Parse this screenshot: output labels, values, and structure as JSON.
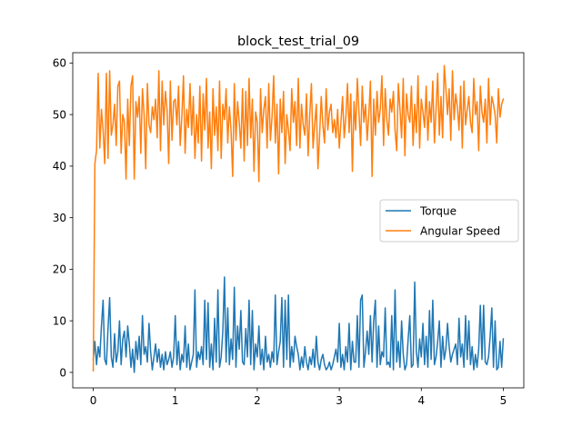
{
  "chart_data": {
    "type": "line",
    "title": "block_test_trial_09",
    "xlabel": "",
    "ylabel": "",
    "xlim": [
      -0.25,
      5.25
    ],
    "ylim": [
      -3.0,
      62.0
    ],
    "xticks": [
      0,
      1,
      2,
      3,
      4,
      5
    ],
    "yticks": [
      0,
      10,
      20,
      30,
      40,
      50,
      60
    ],
    "grid": false,
    "legend_position": "center-right",
    "series": [
      {
        "name": "Torque",
        "color": "#1f77b4",
        "x": [
          0.0,
          0.02,
          0.04,
          0.06,
          0.08,
          0.1,
          0.12,
          0.14,
          0.16,
          0.18,
          0.2,
          0.22,
          0.24,
          0.26,
          0.28,
          0.3,
          0.32,
          0.34,
          0.36,
          0.38,
          0.4,
          0.42,
          0.44,
          0.46,
          0.48,
          0.5,
          0.52,
          0.54,
          0.56,
          0.58,
          0.6,
          0.62,
          0.64,
          0.66,
          0.68,
          0.7,
          0.72,
          0.74,
          0.76,
          0.78,
          0.8,
          0.82,
          0.84,
          0.86,
          0.88,
          0.9,
          0.92,
          0.94,
          0.96,
          0.98,
          1.0,
          1.02,
          1.04,
          1.06,
          1.08,
          1.1,
          1.12,
          1.14,
          1.16,
          1.18,
          1.2,
          1.22,
          1.24,
          1.26,
          1.28,
          1.3,
          1.32,
          1.34,
          1.36,
          1.38,
          1.4,
          1.42,
          1.44,
          1.46,
          1.48,
          1.5,
          1.52,
          1.54,
          1.56,
          1.58,
          1.6,
          1.62,
          1.64,
          1.66,
          1.68,
          1.7,
          1.72,
          1.74,
          1.76,
          1.78,
          1.8,
          1.82,
          1.84,
          1.86,
          1.88,
          1.9,
          1.92,
          1.94,
          1.96,
          1.98,
          2.0,
          2.02,
          2.04,
          2.06,
          2.08,
          2.1,
          2.12,
          2.14,
          2.16,
          2.18,
          2.2,
          2.22,
          2.24,
          2.26,
          2.28,
          2.3,
          2.32,
          2.34,
          2.36,
          2.38,
          2.4,
          2.42,
          2.44,
          2.46,
          2.48,
          2.5,
          2.52,
          2.54,
          2.56,
          2.58,
          2.6,
          2.62,
          2.64,
          2.66,
          2.68,
          2.7,
          2.72,
          2.74,
          2.76,
          2.78,
          2.8,
          2.82,
          2.84,
          2.86,
          2.88,
          2.9,
          2.92,
          2.94,
          2.96,
          2.98,
          3.0,
          3.02,
          3.04,
          3.06,
          3.08,
          3.1,
          3.12,
          3.14,
          3.16,
          3.18,
          3.2,
          3.22,
          3.24,
          3.26,
          3.28,
          3.3,
          3.32,
          3.34,
          3.36,
          3.38,
          3.4,
          3.42,
          3.44,
          3.46,
          3.48,
          3.5,
          3.52,
          3.54,
          3.56,
          3.58,
          3.6,
          3.62,
          3.64,
          3.66,
          3.68,
          3.7,
          3.72,
          3.74,
          3.76,
          3.78,
          3.8,
          3.82,
          3.84,
          3.86,
          3.88,
          3.9,
          3.92,
          3.94,
          3.96,
          3.98,
          4.0,
          4.02,
          4.04,
          4.06,
          4.08,
          4.1,
          4.12,
          4.14,
          4.16,
          4.18,
          4.2,
          4.22,
          4.24,
          4.26,
          4.28,
          4.3,
          4.32,
          4.34,
          4.36,
          4.38,
          4.4,
          4.42,
          4.44,
          4.46,
          4.48,
          4.5,
          4.52,
          4.54,
          4.56,
          4.58,
          4.6,
          4.62,
          4.64,
          4.66,
          4.68,
          4.7,
          4.72,
          4.74,
          4.76,
          4.78,
          4.8,
          4.82,
          4.84,
          4.86,
          4.88,
          4.9,
          4.92,
          4.94,
          4.96,
          4.98,
          5.0
        ],
        "y": [
          2.5,
          6.0,
          1.5,
          5.0,
          3.0,
          9.0,
          14.0,
          2.5,
          1.5,
          8.5,
          14.5,
          3.0,
          1.0,
          7.5,
          2.0,
          4.0,
          10.0,
          1.5,
          6.5,
          8.0,
          3.0,
          9.0,
          5.5,
          1.0,
          4.5,
          0.0,
          6.0,
          2.5,
          7.0,
          1.5,
          11.0,
          3.5,
          5.0,
          2.0,
          9.5,
          4.0,
          0.5,
          3.0,
          5.5,
          2.0,
          4.5,
          1.0,
          3.5,
          0.5,
          4.0,
          1.5,
          2.5,
          4.0,
          1.0,
          3.0,
          11.0,
          1.5,
          6.0,
          0.5,
          3.5,
          2.0,
          9.0,
          1.0,
          5.5,
          0.5,
          2.0,
          3.5,
          16.0,
          1.0,
          4.0,
          2.5,
          5.0,
          1.5,
          14.0,
          2.5,
          13.5,
          1.0,
          5.5,
          0.5,
          10.5,
          2.0,
          16.0,
          1.0,
          3.0,
          8.0,
          18.5,
          2.0,
          12.5,
          1.5,
          6.5,
          2.5,
          16.5,
          1.0,
          9.0,
          4.5,
          12.0,
          2.0,
          1.5,
          8.5,
          3.0,
          14.0,
          1.5,
          12.0,
          0.5,
          5.5,
          3.0,
          9.0,
          1.5,
          4.5,
          0.5,
          7.0,
          2.0,
          3.5,
          1.0,
          4.0,
          2.0,
          15.0,
          1.5,
          4.0,
          6.0,
          14.5,
          1.0,
          14.0,
          2.5,
          15.0,
          1.0,
          5.0,
          2.0,
          7.0,
          5.0,
          3.5,
          0.5,
          3.0,
          1.0,
          5.0,
          2.0,
          0.5,
          3.0,
          1.5,
          4.5,
          1.0,
          7.0,
          2.0,
          0.5,
          2.5,
          3.5,
          1.5,
          0.5,
          1.0,
          2.0,
          0.5,
          1.5,
          3.0,
          4.5,
          2.0,
          9.5,
          1.0,
          3.5,
          0.5,
          5.0,
          2.0,
          9.5,
          0.5,
          6.0,
          2.0,
          2.0,
          11.0,
          1.0,
          14.0,
          15.0,
          1.0,
          4.0,
          8.0,
          3.5,
          11.0,
          2.0,
          10.0,
          14.0,
          1.0,
          9.0,
          1.5,
          4.0,
          3.0,
          12.5,
          1.5,
          2.0,
          1.0,
          11.0,
          0.5,
          16.0,
          2.0,
          6.0,
          1.0,
          10.0,
          3.5,
          0.5,
          1.5,
          6.5,
          11.0,
          1.0,
          1.5,
          17.5,
          4.0,
          1.0,
          6.5,
          3.0,
          9.5,
          1.5,
          7.0,
          1.0,
          12.0,
          2.5,
          14.0,
          1.5,
          3.0,
          6.0,
          10.0,
          1.0,
          7.0,
          2.5,
          4.5,
          9.5,
          5.0,
          2.0,
          3.5,
          4.5,
          5.5,
          1.5,
          10.5,
          3.0,
          5.5,
          1.0,
          11.0,
          2.5,
          10.0,
          1.5,
          5.0,
          0.5,
          3.5,
          1.0,
          4.5,
          13.0,
          2.5,
          13.0,
          2.0,
          1.5,
          3.0,
          7.0,
          12.5,
          1.0,
          10.0,
          0.5,
          1.0,
          6.0,
          1.0,
          6.5
        ]
      },
      {
        "name": "Angular Speed",
        "color": "#ff7f0e",
        "x": [
          0.0,
          0.02,
          0.04,
          0.06,
          0.08,
          0.1,
          0.12,
          0.14,
          0.16,
          0.18,
          0.2,
          0.22,
          0.24,
          0.26,
          0.28,
          0.3,
          0.32,
          0.34,
          0.36,
          0.38,
          0.4,
          0.42,
          0.44,
          0.46,
          0.48,
          0.5,
          0.52,
          0.54,
          0.56,
          0.58,
          0.6,
          0.62,
          0.64,
          0.66,
          0.68,
          0.7,
          0.72,
          0.74,
          0.76,
          0.78,
          0.8,
          0.82,
          0.84,
          0.86,
          0.88,
          0.9,
          0.92,
          0.94,
          0.96,
          0.98,
          1.0,
          1.02,
          1.04,
          1.06,
          1.08,
          1.1,
          1.12,
          1.14,
          1.16,
          1.18,
          1.2,
          1.22,
          1.24,
          1.26,
          1.28,
          1.3,
          1.32,
          1.34,
          1.36,
          1.38,
          1.4,
          1.42,
          1.44,
          1.46,
          1.48,
          1.5,
          1.52,
          1.54,
          1.56,
          1.58,
          1.6,
          1.62,
          1.64,
          1.66,
          1.68,
          1.7,
          1.72,
          1.74,
          1.76,
          1.78,
          1.8,
          1.82,
          1.84,
          1.86,
          1.88,
          1.9,
          1.92,
          1.94,
          1.96,
          1.98,
          2.0,
          2.02,
          2.04,
          2.06,
          2.08,
          2.1,
          2.12,
          2.14,
          2.16,
          2.18,
          2.2,
          2.22,
          2.24,
          2.26,
          2.28,
          2.3,
          2.32,
          2.34,
          2.36,
          2.38,
          2.4,
          2.42,
          2.44,
          2.46,
          2.48,
          2.5,
          2.52,
          2.54,
          2.56,
          2.58,
          2.6,
          2.62,
          2.64,
          2.66,
          2.68,
          2.7,
          2.72,
          2.74,
          2.76,
          2.78,
          2.8,
          2.82,
          2.84,
          2.86,
          2.88,
          2.9,
          2.92,
          2.94,
          2.96,
          2.98,
          3.0,
          3.02,
          3.04,
          3.06,
          3.08,
          3.1,
          3.12,
          3.14,
          3.16,
          3.18,
          3.2,
          3.22,
          3.24,
          3.26,
          3.28,
          3.3,
          3.32,
          3.34,
          3.36,
          3.38,
          3.4,
          3.42,
          3.44,
          3.46,
          3.48,
          3.5,
          3.52,
          3.54,
          3.56,
          3.58,
          3.6,
          3.62,
          3.64,
          3.66,
          3.68,
          3.7,
          3.72,
          3.74,
          3.76,
          3.78,
          3.8,
          3.82,
          3.84,
          3.86,
          3.88,
          3.9,
          3.92,
          3.94,
          3.96,
          3.98,
          4.0,
          4.02,
          4.04,
          4.06,
          4.08,
          4.1,
          4.12,
          4.14,
          4.16,
          4.18,
          4.2,
          4.22,
          4.24,
          4.26,
          4.28,
          4.3,
          4.32,
          4.34,
          4.36,
          4.38,
          4.4,
          4.42,
          4.44,
          4.46,
          4.48,
          4.5,
          4.52,
          4.54,
          4.56,
          4.58,
          4.6,
          4.62,
          4.64,
          4.66,
          4.68,
          4.7,
          4.72,
          4.74,
          4.76,
          4.78,
          4.8,
          4.82,
          4.84,
          4.86,
          4.88,
          4.9,
          4.92,
          4.94,
          4.96,
          4.98,
          5.0
        ],
        "y": [
          0.3,
          40.5,
          43.0,
          58.0,
          43.5,
          51.0,
          47.0,
          40.5,
          58.0,
          41.5,
          58.5,
          46.0,
          48.0,
          52.0,
          44.0,
          55.5,
          56.5,
          42.5,
          50.0,
          48.5,
          37.5,
          53.0,
          44.0,
          55.5,
          57.5,
          37.5,
          52.5,
          49.5,
          53.5,
          42.5,
          55.0,
          50.0,
          39.5,
          56.0,
          48.0,
          46.5,
          51.5,
          49.0,
          53.0,
          45.5,
          58.5,
          43.0,
          56.5,
          48.0,
          54.5,
          51.0,
          40.5,
          56.5,
          45.0,
          52.5,
          53.0,
          48.0,
          55.5,
          44.0,
          49.5,
          57.5,
          42.5,
          51.0,
          47.5,
          56.0,
          46.0,
          53.5,
          41.5,
          50.0,
          44.5,
          55.5,
          41.0,
          54.0,
          47.0,
          57.0,
          43.5,
          50.5,
          39.5,
          55.0,
          46.0,
          51.5,
          43.0,
          56.5,
          41.5,
          52.0,
          49.0,
          55.0,
          44.5,
          51.5,
          47.0,
          38.0,
          56.0,
          45.0,
          52.5,
          48.5,
          43.5,
          55.0,
          41.0,
          54.5,
          44.0,
          57.0,
          45.5,
          53.0,
          39.0,
          50.5,
          48.5,
          37.0,
          55.0,
          46.5,
          51.0,
          53.5,
          43.5,
          56.0,
          45.0,
          49.5,
          57.5,
          44.5,
          52.0,
          38.5,
          53.0,
          46.5,
          54.5,
          40.5,
          50.0,
          47.0,
          43.0,
          55.0,
          48.5,
          52.5,
          44.0,
          57.0,
          43.5,
          52.0,
          48.0,
          46.0,
          54.0,
          42.0,
          50.0,
          56.0,
          43.5,
          48.0,
          52.0,
          39.5,
          46.0,
          53.5,
          48.0,
          44.5,
          55.0,
          47.0,
          50.5,
          52.0,
          46.5,
          49.0,
          45.5,
          51.0,
          43.5,
          48.5,
          53.5,
          45.5,
          49.5,
          56.0,
          46.5,
          54.0,
          39.0,
          52.5,
          47.0,
          57.0,
          50.5,
          44.0,
          55.5,
          48.5,
          52.0,
          45.0,
          50.0,
          56.5,
          38.0,
          53.0,
          46.0,
          54.5,
          48.5,
          51.0,
          57.5,
          44.0,
          55.0,
          49.0,
          46.0,
          53.0,
          50.5,
          54.5,
          47.0,
          43.0,
          56.0,
          51.0,
          45.5,
          57.0,
          42.0,
          54.0,
          50.0,
          48.5,
          55.5,
          44.0,
          52.0,
          46.5,
          57.5,
          43.5,
          53.0,
          50.5,
          47.5,
          55.5,
          45.0,
          52.5,
          48.5,
          56.5,
          44.5,
          51.0,
          58.0,
          46.0,
          53.5,
          45.5,
          59.5,
          55.0,
          50.0,
          55.0,
          45.0,
          58.5,
          49.0,
          54.0,
          51.5,
          47.0,
          55.5,
          43.5,
          56.5,
          48.0,
          51.0,
          53.5,
          48.5,
          46.5,
          57.0,
          50.0,
          52.5,
          43.0,
          55.5,
          50.5,
          48.5,
          53.0,
          44.5,
          57.0,
          48.0,
          53.5,
          52.0,
          50.0,
          44.5,
          55.0,
          49.5,
          52.0,
          53.0
        ]
      }
    ]
  }
}
